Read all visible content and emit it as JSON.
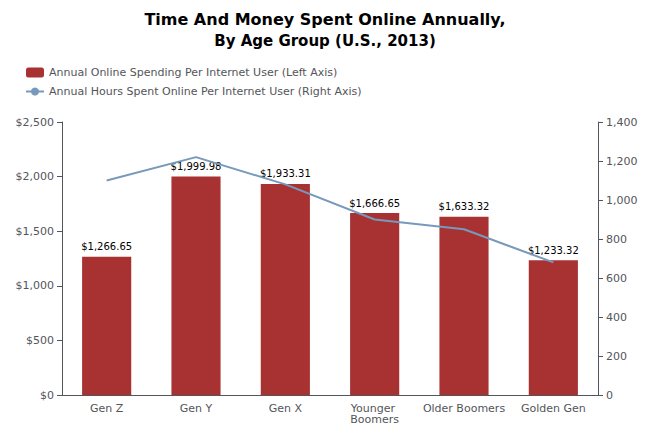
{
  "chart_data": {
    "type": "bar",
    "title": "Time And Money Spent Online Annually,",
    "subtitle": "By Age Group (U.S., 2013)",
    "categories": [
      "Gen Z",
      "Gen Y",
      "Gen X",
      "Younger Boomers",
      "Older Boomers",
      "Golden Gen"
    ],
    "series": [
      {
        "name": "Annual Online Spending Per Internet User (Left Axis)",
        "type": "bar",
        "color": "#a83232",
        "values": [
          1266.65,
          1999.98,
          1933.31,
          1666.65,
          1633.32,
          1233.32
        ],
        "value_labels": [
          "$1,266.65",
          "$1,999.98",
          "$1,933.31",
          "$1,666.65",
          "$1,633.32",
          "$1,233.32"
        ],
        "data_labels": true
      },
      {
        "name": "Annual Hours Spent Online Per Internet User (Right Axis)",
        "type": "line",
        "color": "#7799bb",
        "values": [
          1100,
          1220,
          1080,
          900,
          850,
          680
        ],
        "axis": "y2"
      }
    ],
    "ylim": [
      0,
      2500
    ],
    "yticks": [
      {
        "value": 0,
        "label": "$0"
      },
      {
        "value": 500,
        "label": "$500"
      },
      {
        "value": 1000,
        "label": "$1,000"
      },
      {
        "value": 1500,
        "label": "$1,500"
      },
      {
        "value": 2000,
        "label": "$2,000"
      },
      {
        "value": 2500,
        "label": "$2,500"
      }
    ],
    "y2lim": [
      0,
      1400
    ],
    "y2ticks": [
      0,
      200,
      400,
      600,
      800,
      {
        "value": 1000,
        "label": "1,000"
      },
      {
        "value": 1200,
        "label": "1,200"
      },
      {
        "value": 1400,
        "label": "1,400"
      }
    ],
    "grid": false,
    "legend": "upper left"
  }
}
